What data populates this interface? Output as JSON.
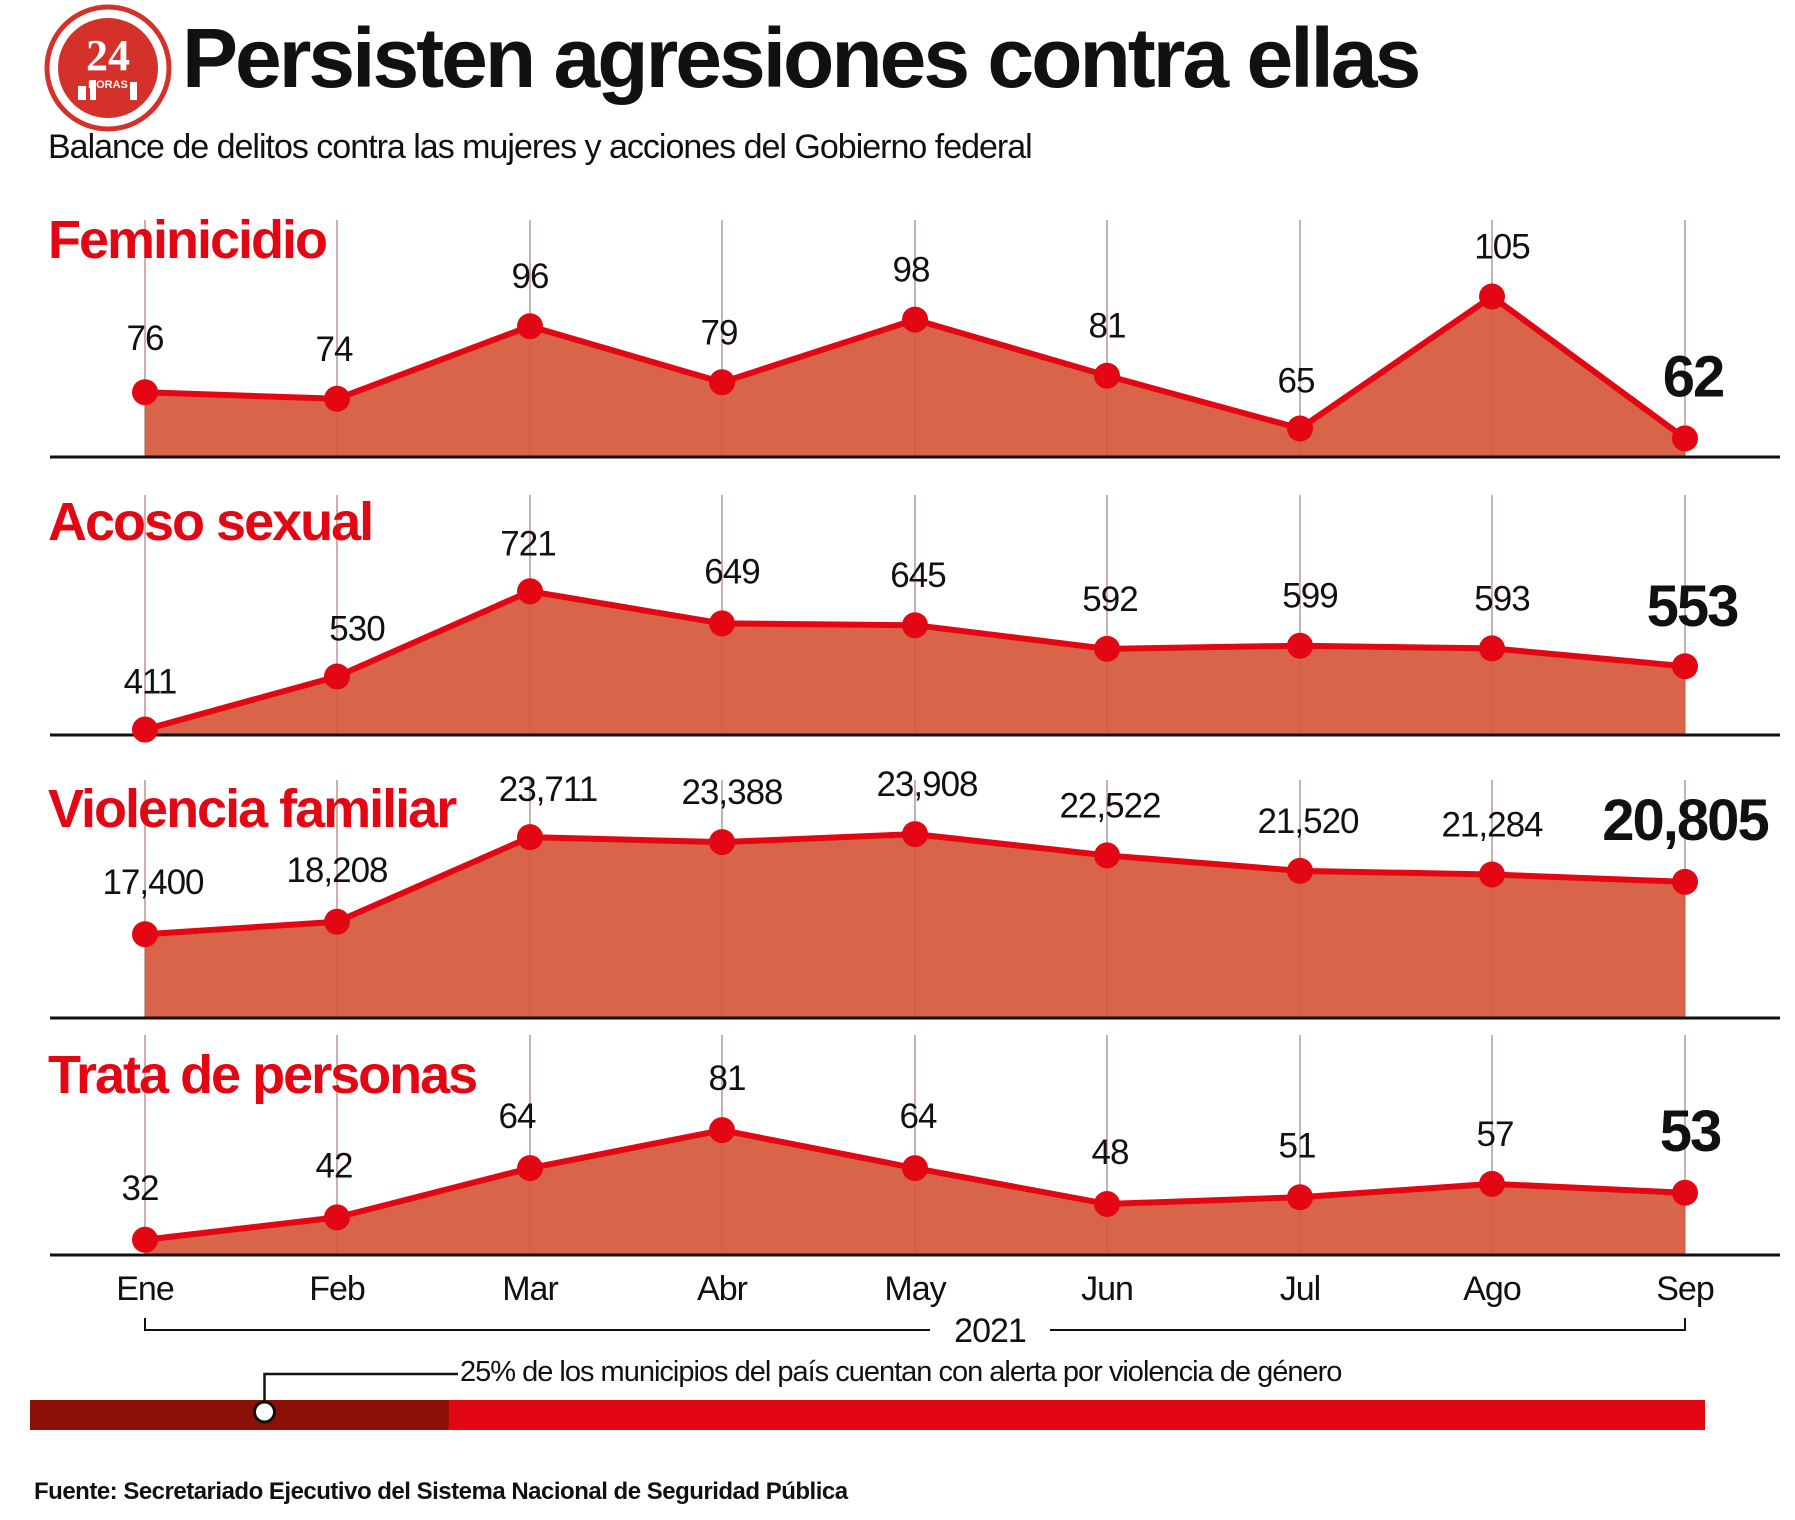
{
  "header": {
    "logo_text_big": "24",
    "logo_text_small": "HORAS",
    "title": "Persisten agresiones contra ellas",
    "subtitle": "Balance de delitos contra las mujeres y acciones del Gobierno federal"
  },
  "chart_data": {
    "type": "area",
    "categories": [
      "Ene",
      "Feb",
      "Mar",
      "Abr",
      "May",
      "Jun",
      "Jul",
      "Ago",
      "Sep"
    ],
    "x_group_label": "2021",
    "grid": true,
    "colors": {
      "title": "#e30613",
      "line": "#e30613",
      "fill": "#d8654a",
      "grid": "#bbbbbb",
      "axis": "#111111"
    },
    "panels": [
      {
        "title": "Feminicidio",
        "values": [
          76,
          74,
          96,
          79,
          98,
          81,
          65,
          105,
          62
        ],
        "labels": [
          "76",
          "74",
          "96",
          "79",
          "98",
          "81",
          "65",
          "105",
          "62"
        ],
        "ylim": [
          60,
          110
        ]
      },
      {
        "title": "Acoso sexual",
        "values": [
          411,
          530,
          721,
          649,
          645,
          592,
          599,
          593,
          553
        ],
        "labels": [
          "411",
          "530",
          "721",
          "649",
          "645",
          "592",
          "599",
          "593",
          "553"
        ],
        "ylim": [
          410,
          780
        ]
      },
      {
        "title": "Violencia familiar",
        "values": [
          17400,
          18208,
          23711,
          23388,
          23908,
          22522,
          21520,
          21284,
          20805
        ],
        "labels": [
          "17,400",
          "18,208",
          "23,711",
          "23,388",
          "23,908",
          "22,522",
          "21,520",
          "21,284",
          "20,805"
        ],
        "ylim": [
          15400,
          24500
        ]
      },
      {
        "title": "Trata de personas",
        "values": [
          32,
          42,
          64,
          81,
          64,
          48,
          51,
          57,
          53
        ],
        "labels": [
          "32",
          "42",
          "64",
          "81",
          "64",
          "48",
          "51",
          "57",
          "53"
        ],
        "ylim": [
          31,
          90
        ]
      }
    ]
  },
  "alert": {
    "label": "25% de los municipios del país cuentan con alerta por violencia de género",
    "percent": 25,
    "colors": {
      "dark": "#8b1008",
      "light": "#e30613"
    }
  },
  "footer": {
    "source": "Fuente: Secretariado Ejecutivo del Sistema Nacional de Seguridad Pública"
  }
}
